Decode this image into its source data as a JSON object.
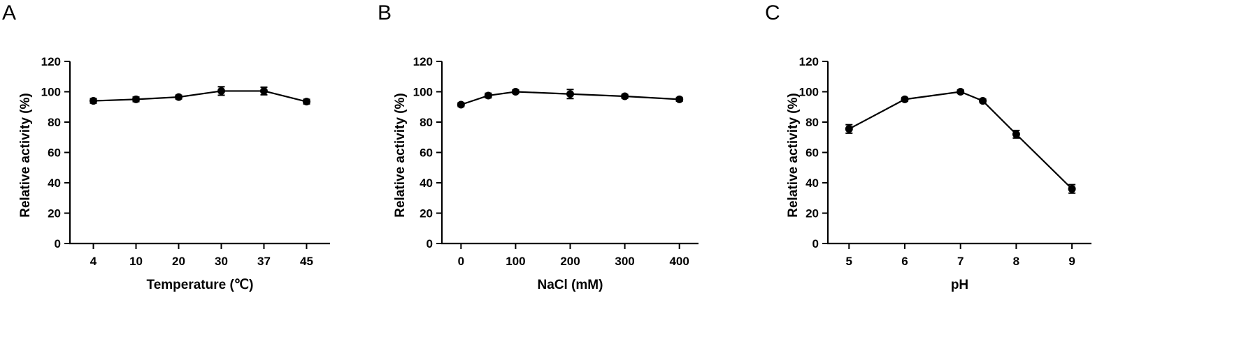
{
  "panels": [
    {
      "letter": "A"
    },
    {
      "letter": "B"
    },
    {
      "letter": "C"
    }
  ],
  "colors": {
    "line": "#000000",
    "marker": "#000000",
    "background": "#ffffff"
  },
  "chart_data": [
    {
      "type": "line",
      "x_scale": "categorical",
      "categories": [
        "4",
        "10",
        "20",
        "30",
        "37",
        "45"
      ],
      "values": [
        94,
        95,
        96.5,
        100.5,
        100.5,
        93.5
      ],
      "error": [
        1.5,
        1.5,
        1.2,
        2.8,
        2.5,
        1.5
      ],
      "xlabel": "Temperature (℃)",
      "ylabel": "Relative activity (%)",
      "ylim": [
        0,
        120
      ],
      "yticks": [
        "0",
        "20",
        "40",
        "60",
        "80",
        "100",
        "120"
      ],
      "grid": false
    },
    {
      "type": "line",
      "x_scale": "linear",
      "x": [
        0,
        50,
        100,
        200,
        300,
        400
      ],
      "values": [
        91.5,
        97.5,
        100,
        98.5,
        97,
        95
      ],
      "error": [
        1.2,
        1.5,
        1.2,
        3,
        1.2,
        1.2
      ],
      "xlim": [
        -35,
        435
      ],
      "xticks": [
        "0",
        "100",
        "200",
        "300",
        "400"
      ],
      "xlabel": "NaCl (mM)",
      "ylabel": "Relative activity (%)",
      "ylim": [
        0,
        120
      ],
      "yticks": [
        "0",
        "20",
        "40",
        "60",
        "80",
        "100",
        "120"
      ],
      "grid": false
    },
    {
      "type": "line",
      "x_scale": "linear",
      "x": [
        5,
        6,
        7,
        7.4,
        8,
        9
      ],
      "values": [
        75.5,
        95,
        100,
        94,
        72,
        36
      ],
      "error": [
        2.8,
        1.2,
        1.2,
        1.2,
        2.5,
        2.8
      ],
      "xlim": [
        4.62,
        9.35
      ],
      "xticks": [
        "5",
        "6",
        "7",
        "8",
        "9"
      ],
      "xlabel": "pH",
      "ylabel": "Relative activity (%)",
      "ylim": [
        0,
        120
      ],
      "yticks": [
        "0",
        "20",
        "40",
        "60",
        "80",
        "100",
        "120"
      ],
      "grid": false
    }
  ]
}
